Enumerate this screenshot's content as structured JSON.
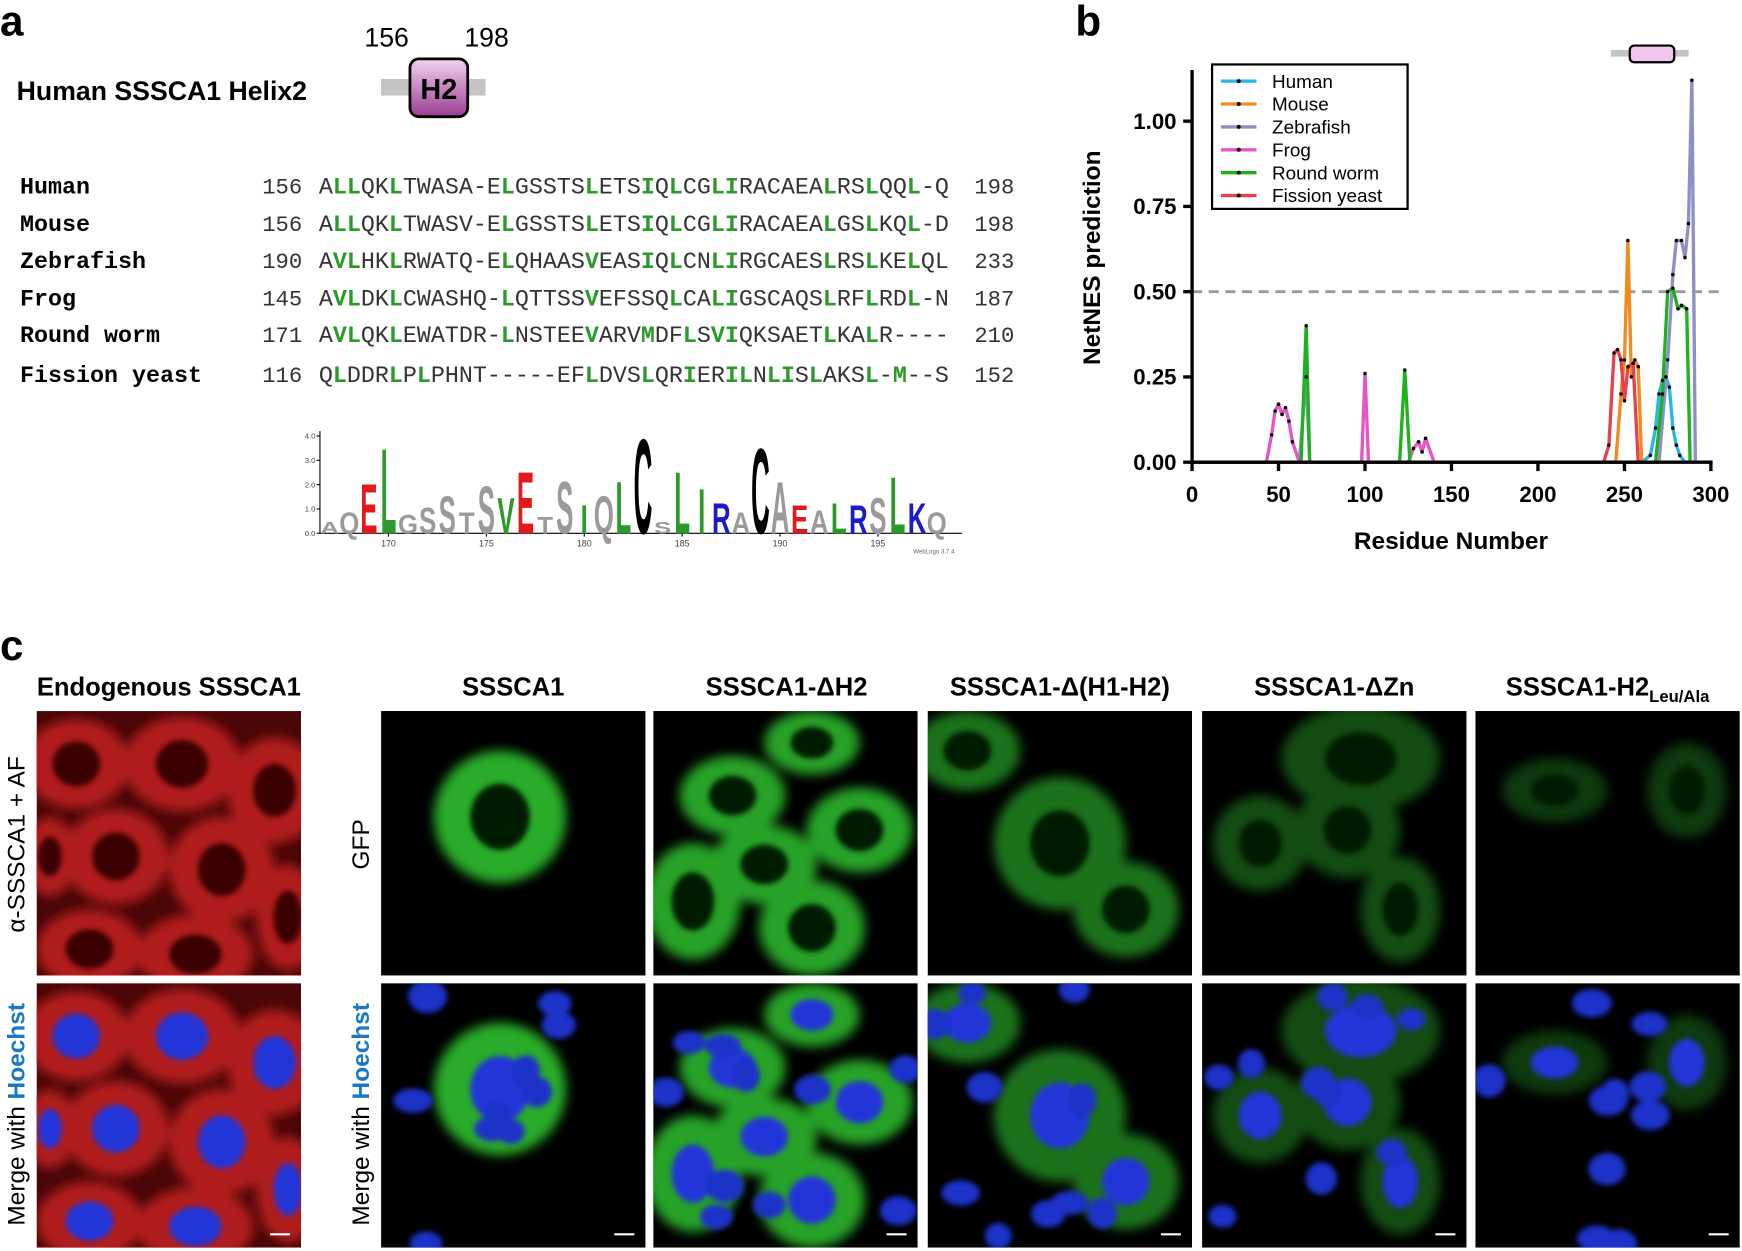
{
  "panel_a": {
    "label": "a",
    "domain_title": "Human SSSCA1 Helix2",
    "domain": {
      "start": "156",
      "end": "198",
      "name": "H2"
    },
    "alignment": {
      "highlight_columns": [
        1,
        2,
        5,
        7,
        13,
        19,
        23,
        25,
        26,
        28,
        29,
        30,
        32,
        33,
        35,
        36,
        39,
        41,
        42
      ],
      "rows": [
        {
          "species": "Human",
          "start": "156",
          "sequence": "ALLQKLTWASA-ELGSSTSLETSIQLCGLIRACAEALRSLQQL-Q",
          "end": "198"
        },
        {
          "species": "Mouse",
          "start": "156",
          "sequence": "ALLQKLTWASV-ELGSSTSLETSIQLCGLIRACAEALGSLKQL-D",
          "end": "198"
        },
        {
          "species": "Zebrafish",
          "start": "190",
          "sequence": "AVLHKLRWATQ-ELQHAASVEASIQLCNLIRGCAESLRSLKELQL",
          "end": "233"
        },
        {
          "species": "Frog",
          "start": "145",
          "sequence": "AVLDKLCWASHQ-LQTTSSVEFSSQLCALIGSCAQSLRFLRDL-N",
          "end": "187"
        },
        {
          "species": "Round worm",
          "start": "171",
          "sequence": "AVLQKLEWATDR-LNSTEEVARVMDFLSVIQKSAETLKALR----",
          "end": "210"
        },
        {
          "species": "Fission yeast",
          "start": "116",
          "sequence": "QLDDRLPLPHNT-----EFLDVSLQRIERILNLISLAKSL-M--S",
          "end": "152"
        }
      ]
    },
    "logo": {
      "xlim": [
        166.5,
        199.3
      ],
      "xticks": [
        170,
        175,
        180,
        185,
        190,
        195
      ],
      "ylim": [
        0,
        4.2
      ],
      "yticks": [
        {
          "value": 0,
          "label": "0.0"
        },
        {
          "value": 1,
          "label": "1.0"
        },
        {
          "value": 2,
          "label": "2.0"
        },
        {
          "value": 3,
          "label": "3.0"
        },
        {
          "value": 4,
          "label": "4.0"
        }
      ],
      "credit": "WebLogo 3.7.4",
      "columns": [
        {
          "position": 167,
          "letter": "A",
          "height": 0.5,
          "color": "#9a9a9a"
        },
        {
          "position": 168,
          "letter": "Q",
          "height": 0.9,
          "color": "#9a9a9a"
        },
        {
          "position": 169,
          "letter": "E",
          "height": 2.1,
          "color": "#e31a1c"
        },
        {
          "position": 170,
          "letter": "L",
          "height": 3.6,
          "color": "#2a9a2a"
        },
        {
          "position": 171,
          "letter": "G",
          "height": 0.8,
          "color": "#9a9a9a"
        },
        {
          "position": 172,
          "letter": "S",
          "height": 1.1,
          "color": "#9a9a9a"
        },
        {
          "position": 173,
          "letter": "S",
          "height": 1.6,
          "color": "#9a9a9a"
        },
        {
          "position": 174,
          "letter": "T",
          "height": 0.9,
          "color": "#9a9a9a"
        },
        {
          "position": 175,
          "letter": "S",
          "height": 2.0,
          "color": "#9a9a9a"
        },
        {
          "position": 176,
          "letter": "V",
          "height": 1.5,
          "color": "#2a9a2a"
        },
        {
          "position": 177,
          "letter": "E",
          "height": 2.6,
          "color": "#e31a1c"
        },
        {
          "position": 178,
          "letter": "T",
          "height": 0.7,
          "color": "#9a9a9a"
        },
        {
          "position": 179,
          "letter": "S",
          "height": 2.2,
          "color": "#9a9a9a"
        },
        {
          "position": 180,
          "letter": "I",
          "height": 1.2,
          "color": "#2a9a2a"
        },
        {
          "position": 181,
          "letter": "Q",
          "height": 1.6,
          "color": "#9a9a9a"
        },
        {
          "position": 182,
          "letter": "L",
          "height": 2.2,
          "color": "#2a9a2a"
        },
        {
          "position": 183,
          "letter": "C",
          "height": 4.0,
          "color": "#000000"
        },
        {
          "position": 184,
          "letter": "S",
          "height": 0.5,
          "color": "#9a9a9a"
        },
        {
          "position": 185,
          "letter": "L",
          "height": 2.6,
          "color": "#2a9a2a"
        },
        {
          "position": 186,
          "letter": "I",
          "height": 1.9,
          "color": "#2a9a2a"
        },
        {
          "position": 187,
          "letter": "R",
          "height": 1.3,
          "color": "#1a1ad0"
        },
        {
          "position": 188,
          "letter": "A",
          "height": 0.9,
          "color": "#9a9a9a"
        },
        {
          "position": 189,
          "letter": "C",
          "height": 3.6,
          "color": "#000000"
        },
        {
          "position": 190,
          "letter": "A",
          "height": 2.2,
          "color": "#9a9a9a"
        },
        {
          "position": 191,
          "letter": "E",
          "height": 1.2,
          "color": "#e31a1c"
        },
        {
          "position": 192,
          "letter": "A",
          "height": 1.0,
          "color": "#9a9a9a"
        },
        {
          "position": 193,
          "letter": "L",
          "height": 1.3,
          "color": "#2a9a2a"
        },
        {
          "position": 194,
          "letter": "R",
          "height": 1.2,
          "color": "#1a1ad0"
        },
        {
          "position": 195,
          "letter": "S",
          "height": 1.5,
          "color": "#9a9a9a"
        },
        {
          "position": 196,
          "letter": "L",
          "height": 2.4,
          "color": "#2a9a2a"
        },
        {
          "position": 197,
          "letter": "K",
          "height": 1.3,
          "color": "#1a1ad0"
        },
        {
          "position": 198,
          "letter": "Q",
          "height": 0.9,
          "color": "#9a9a9a"
        }
      ]
    }
  },
  "chart_data": {
    "type": "line",
    "label": "b",
    "x_label": "Residue Number",
    "y_label": "NetNES prediction",
    "xlim": [
      0,
      300
    ],
    "xticks": [
      0,
      50,
      100,
      150,
      200,
      250,
      300
    ],
    "ylim": [
      0,
      1.15
    ],
    "yticks": [
      {
        "value": 0,
        "label": "0.00"
      },
      {
        "value": 0.25,
        "label": "0.25"
      },
      {
        "value": 0.5,
        "label": "0.50"
      },
      {
        "value": 0.75,
        "label": "0.75"
      },
      {
        "value": 1,
        "label": "1.00"
      }
    ],
    "threshold": 0.5,
    "legend": "upper left",
    "series": [
      {
        "name": "Human",
        "color": "#29b6e8",
        "x": [
          1,
          260,
          265,
          268,
          270,
          272,
          274,
          276,
          278,
          280,
          282,
          285
        ],
        "values": [
          0,
          0,
          0.02,
          0.1,
          0.2,
          0.24,
          0.25,
          0.22,
          0.1,
          0.05,
          0.02,
          0
        ]
      },
      {
        "name": "Mouse",
        "color": "#f28b1c",
        "x": [
          1,
          245,
          248,
          250,
          252,
          254,
          256,
          258,
          260
        ],
        "values": [
          0,
          0,
          0.2,
          0.3,
          0.65,
          0.25,
          0.3,
          0.28,
          0
        ]
      },
      {
        "name": "Zebrafish",
        "color": "#8e8fc8",
        "x": [
          1,
          62,
          66,
          68,
          270,
          275,
          278,
          280,
          283,
          285,
          287,
          289,
          291
        ],
        "values": [
          0,
          0,
          0.25,
          0,
          0,
          0.3,
          0.55,
          0.65,
          0.65,
          0.6,
          0.7,
          1.12,
          0
        ]
      },
      {
        "name": "Frog",
        "color": "#e754c6",
        "x": [
          1,
          43,
          46,
          48,
          50,
          52,
          54,
          56,
          58,
          62,
          98,
          100,
          102,
          125,
          128,
          131,
          133,
          135,
          140
        ],
        "values": [
          0,
          0,
          0.08,
          0.15,
          0.17,
          0.14,
          0.16,
          0.12,
          0.06,
          0,
          0,
          0.26,
          0,
          0,
          0.04,
          0.06,
          0.03,
          0.07,
          0
        ]
      },
      {
        "name": "Round worm",
        "color": "#1db31d",
        "x": [
          1,
          63,
          66,
          68,
          120,
          123,
          126,
          268,
          272,
          275,
          278,
          281,
          283,
          286,
          288
        ],
        "values": [
          0,
          0,
          0.4,
          0,
          0,
          0.27,
          0,
          0,
          0.2,
          0.5,
          0.51,
          0.45,
          0.46,
          0.45,
          0
        ]
      },
      {
        "name": "Fission yeast",
        "color": "#e8414a",
        "x": [
          1,
          238,
          241,
          244,
          246,
          248,
          250,
          252,
          255,
          258
        ],
        "values": [
          0,
          0,
          0.05,
          0.32,
          0.33,
          0.3,
          0.18,
          0.28,
          0.29,
          0
        ]
      }
    ]
  },
  "panel_c": {
    "label": "c",
    "columns": [
      {
        "title": "Endogenous SSSCA1"
      },
      {
        "title": "SSSCA1"
      },
      {
        "title": "SSSCA1-ΔH2"
      },
      {
        "title": "SSSCA1-Δ(H1-H2)"
      },
      {
        "title": "SSSCA1-ΔZn"
      },
      {
        "title": "SSSCA1-H2",
        "subscript": "Leu/Ala"
      }
    ],
    "row_labels": [
      {
        "text": "α-SSSCA1 + AF"
      },
      {
        "text": "Merge with",
        "highlight": "Hoechst"
      },
      {
        "text": "GFP"
      },
      {
        "text": "Merge with",
        "highlight": "Hoechst"
      }
    ]
  }
}
